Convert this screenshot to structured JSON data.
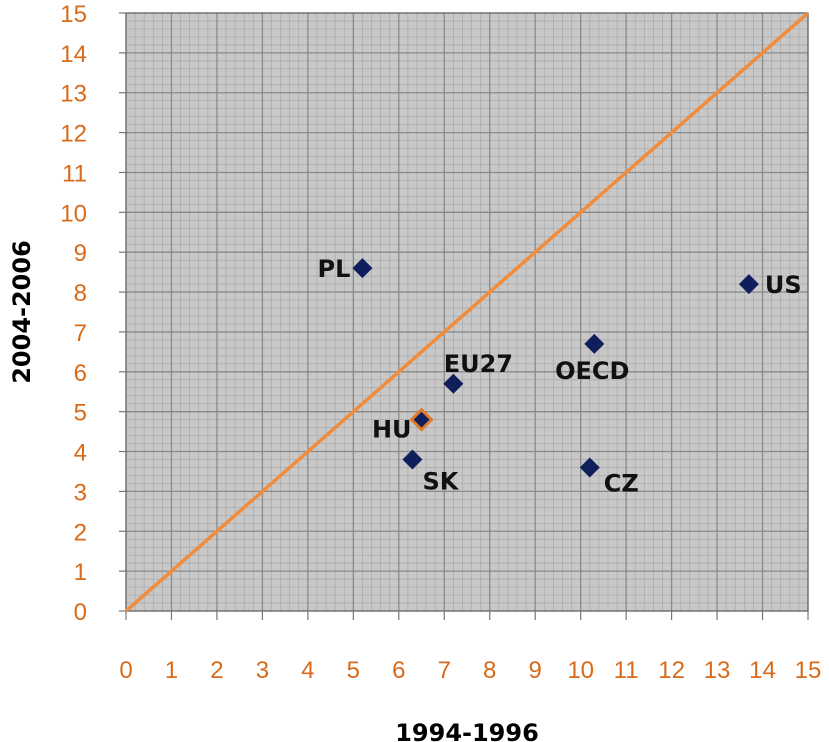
{
  "chart_data": {
    "type": "scatter",
    "xlabel": "1994-1996",
    "ylabel": "2004-2006",
    "xlim": [
      0,
      15
    ],
    "ylim": [
      0,
      15
    ],
    "xticks": [
      0,
      1,
      2,
      3,
      4,
      5,
      6,
      7,
      8,
      9,
      10,
      11,
      12,
      13,
      14,
      15
    ],
    "yticks": [
      0,
      1,
      2,
      3,
      4,
      5,
      6,
      7,
      8,
      9,
      10,
      11,
      12,
      13,
      14,
      15
    ],
    "grid": true,
    "reference_line": {
      "from": [
        0,
        0
      ],
      "to": [
        15,
        15
      ]
    },
    "points": [
      {
        "label": "PL",
        "x": 5.2,
        "y": 8.6
      },
      {
        "label": "US",
        "x": 13.7,
        "y": 8.2
      },
      {
        "label": "OECD",
        "x": 10.3,
        "y": 6.7
      },
      {
        "label": "EU27",
        "x": 7.2,
        "y": 5.7
      },
      {
        "label": "HU",
        "x": 6.5,
        "y": 4.8,
        "highlight": true
      },
      {
        "label": "SK",
        "x": 6.3,
        "y": 3.8
      },
      {
        "label": "CZ",
        "x": 10.2,
        "y": 3.6
      }
    ]
  },
  "colors": {
    "marker": "#0f1f5c",
    "highlight_border": "#e07a2e",
    "line": "#f08c3c",
    "tick_text": "#d86a1a",
    "plot_bg": "#c8c8c8",
    "minor_grid": "#a9a9a9",
    "major_grid": "#8a8a8a"
  }
}
